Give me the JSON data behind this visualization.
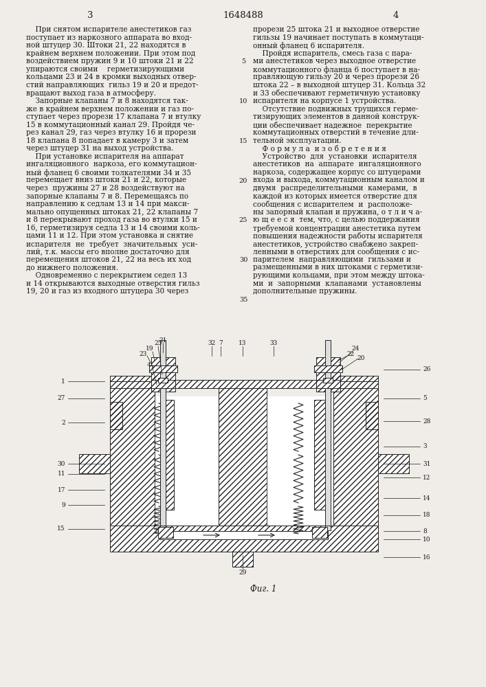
{
  "page_number_left": "3",
  "page_number_center": "1648488",
  "page_number_right": "4",
  "col1_lines": [
    "    При снятом испарителе анестетиков газ",
    "поступает из наркозного аппарата во вход-",
    "ной штуцер 30. Штоки 21, 22 находятся в",
    "крайнем верхнем положении. При этом под",
    "воздействием пружин 9 и 10 штоки 21 и 22",
    "упираются своими    герметизирующими",
    "кольцами 23 и 24 в кромки выходных отвер-",
    "стий направляющих  гильз 19 и 20 и предот-",
    "вращают выход газа в атмосферу.",
    "    Запорные клапаны 7 и 8 находятся так-",
    "же в крайнем верхнем положении и газ по-",
    "ступает через прорези 17 клапана 7 и втулку",
    "15 в коммутационный канал 29. Пройдя че-",
    "рез канал 29, газ через втулку 16 и прорези",
    "18 клапана 8 попадает в камеру 3 и затем",
    "через штуцер 31 на выход устройства.",
    "    При установке испарителя на аппарат",
    "ингаляционного  наркоза, его коммутацион-",
    "ный фланец 6 своими толкателями 34 и 35",
    "перемещает вниз штоки 21 и 22, которые",
    "через  пружины 27 и 28 воздействуют на",
    "запорные клапаны 7 и 8. Перемещаясь по",
    "направлению к седлам 13 и 14 при макси-",
    "мально опущенных штоках 21, 22 клапаны 7",
    "и 8 перекрывают проход газа во втулки 15 и",
    "16, герметизируя седла 13 и 14 своими коль-",
    "цами 11 и 12. При этом установка и снятие",
    "испарителя  не  требует  значительных  уси-",
    "лий, т.к. массы его вполне достаточно для",
    "перемещения штоков 21, 22 на весь их ход",
    "до нижнего положения.",
    "    Одновременно с перекрытием седел 13",
    "и 14 открываются выходные отверстия гильз",
    "19, 20 и газ из входного штуцера 30 через"
  ],
  "col2_lines": [
    "прорези 25 штока 21 и выходное отверстие",
    "гильзы 19 начинает поступать в коммутаци-",
    "онный фланец 6 испарителя.",
    "    Пройдя испаритель, смесь газа с пара-",
    "ми анестетиков через выходное отверстие",
    "коммутационного фланца 6 поступает в на-",
    "правляющую гильзу 20 и через прорези 26",
    "штока 22 – в выходной штуцер 31. Кольца 32",
    "и 33 обеспечивают герметичную установку",
    "испарителя на корпусе 1 устройства.",
    "    Отсутствие подвижных трущихся герме-",
    "тизирующих элементов в данной конструк-",
    "ции обеспечивает надежное  перекрытие",
    "коммутационных отверстий в течение дли-",
    "тельной эксплуатации.",
    "    Ф о р м у л а  и з о б р е т е н и я",
    "    Устройство  для  установки  испарителя",
    "анестетиков  на  аппарате  ингаляционного",
    "наркоза, содержащее корпус со штуцерами",
    "входа и выхода, коммутационным каналом и",
    "двумя  распределительными  камерами,  в",
    "каждой из которых имеется отверстие для",
    "сообщения с испарителем  и  расположе-",
    "ны запорный клапан и пружина, о т л и ч а-",
    "ю щ е е с я  тем, что, с целью поддержания",
    "требуемой концентрации анестетика путем",
    "повышения надежности работы испарителя",
    "анестетиков, устройство снабжено закреп-",
    "ленными в отверстиях для сообщения с ис-",
    "парителем  направляющими  гильзами и",
    "размещенными в них штоками с герметизи-",
    "рующими кольцами, при этом между штока-",
    "ми  и  запорными  клапанами  установлены",
    "дополнительные пружины."
  ],
  "line_numbers": [
    5,
    10,
    15,
    20,
    25,
    30,
    35
  ],
  "fig_caption": "Фиг. 1",
  "bg_color": "#f0ede8",
  "text_color": "#1a1a1a",
  "font_size_body": 7.6,
  "font_size_header": 9.5
}
